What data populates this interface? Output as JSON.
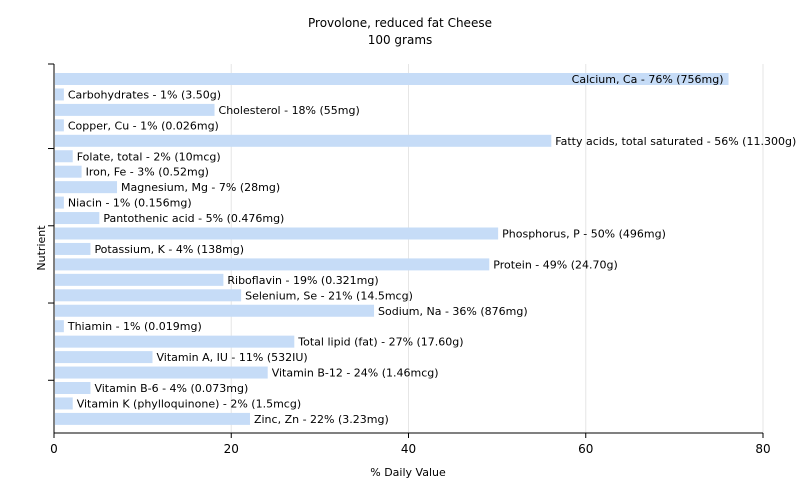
{
  "chart_data": {
    "type": "bar",
    "orientation": "horizontal",
    "title": "Provolone, reduced fat Cheese",
    "subtitle": "100 grams",
    "xlabel": "% Daily Value",
    "ylabel": "Nutrient",
    "xlim": [
      0,
      80
    ],
    "xticks": [
      0,
      20,
      40,
      60,
      80
    ],
    "grid": true,
    "colors": {
      "bar": "#c6dcf7",
      "grid": "#e6e6e6",
      "axis": "#000000"
    },
    "categories": [
      "Calcium, Ca",
      "Carbohydrates",
      "Cholesterol",
      "Copper, Cu",
      "Fatty acids, total saturated",
      "Folate, total",
      "Iron, Fe",
      "Magnesium, Mg",
      "Niacin",
      "Pantothenic acid",
      "Phosphorus, P",
      "Potassium, K",
      "Protein",
      "Riboflavin",
      "Selenium, Se",
      "Sodium, Na",
      "Thiamin",
      "Total lipid (fat)",
      "Vitamin A, IU",
      "Vitamin B-12",
      "Vitamin B-6",
      "Vitamin K (phylloquinone)",
      "Zinc, Zn"
    ],
    "values": [
      76,
      1,
      18,
      1,
      56,
      2,
      3,
      7,
      1,
      5,
      50,
      4,
      49,
      19,
      21,
      36,
      1,
      27,
      11,
      24,
      4,
      2,
      22
    ],
    "labels": [
      "Calcium, Ca - 76% (756mg)",
      "Carbohydrates - 1% (3.50g)",
      "Cholesterol - 18% (55mg)",
      "Copper, Cu - 1% (0.026mg)",
      "Fatty acids, total saturated - 56% (11.300g)",
      "Folate, total - 2% (10mcg)",
      "Iron, Fe - 3% (0.52mg)",
      "Magnesium, Mg - 7% (28mg)",
      "Niacin - 1% (0.156mg)",
      "Pantothenic acid - 5% (0.476mg)",
      "Phosphorus, P - 50% (496mg)",
      "Potassium, K - 4% (138mg)",
      "Protein - 49% (24.70g)",
      "Riboflavin - 19% (0.321mg)",
      "Selenium, Se - 21% (14.5mcg)",
      "Sodium, Na - 36% (876mg)",
      "Thiamin - 1% (0.019mg)",
      "Total lipid (fat) - 27% (17.60g)",
      "Vitamin A, IU - 11% (532IU)",
      "Vitamin B-12 - 24% (1.46mcg)",
      "Vitamin B-6 - 4% (0.073mg)",
      "Vitamin K (phylloquinone) - 2% (1.5mcg)",
      "Zinc, Zn - 22% (3.23mg)"
    ]
  }
}
